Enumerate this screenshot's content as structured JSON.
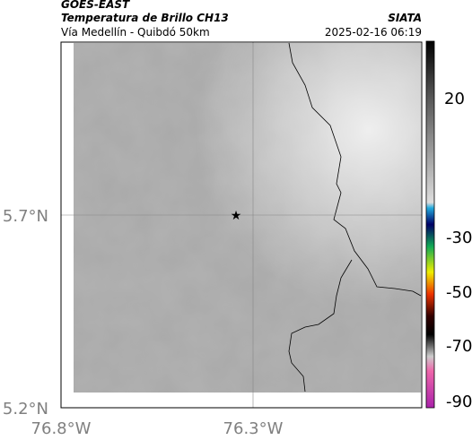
{
  "header": {
    "title": "GOES-EAST",
    "subtitle": "Temperatura de Brillo CH13",
    "route": "Vía Medellín - Quibdó 50km",
    "source": "SIATA",
    "timestamp": "2025-02-16 06:19"
  },
  "map": {
    "lat_labels": [
      "5.7°N",
      "5.2°N"
    ],
    "lon_labels": [
      "76.8°W",
      "76.3°W"
    ]
  },
  "colorbar": {
    "ticks": [
      "20",
      "-30",
      "-50",
      "-70",
      "-90"
    ]
  }
}
